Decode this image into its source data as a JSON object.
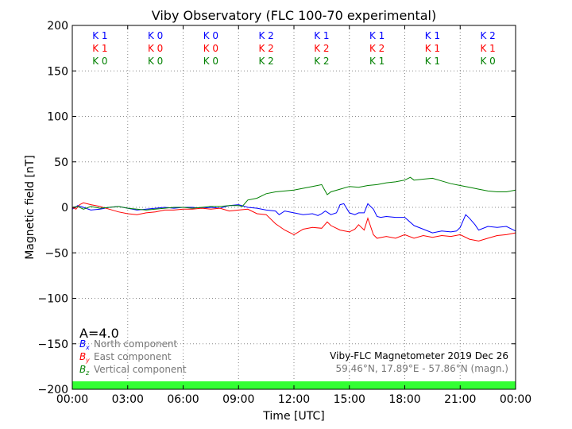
{
  "chart_data": {
    "type": "line",
    "title": "Viby Observatory (FLC 100-70 experimental)",
    "xlabel": "Time [UTC]",
    "ylabel": "Magnetic field [nT]",
    "xlim": [
      0,
      24
    ],
    "ylim": [
      -200,
      200
    ],
    "x_ticks": [
      "00:00",
      "03:00",
      "06:00",
      "09:00",
      "12:00",
      "15:00",
      "18:00",
      "21:00",
      "00:00"
    ],
    "y_ticks": [
      200,
      150,
      100,
      50,
      0,
      -50,
      -100,
      -150,
      -200
    ],
    "y_tick_labels": [
      "200",
      "150",
      "100",
      "50",
      "0",
      "−50",
      "−100",
      "−150",
      "−200"
    ],
    "grid": true,
    "k_index_rows": [
      {
        "color": "#0000ff",
        "values": [
          "K 1",
          "K 0",
          "K 0",
          "K 2",
          "K 1",
          "K 1",
          "K 1",
          "K 2"
        ]
      },
      {
        "color": "#ff0000",
        "values": [
          "K 1",
          "K 0",
          "K 0",
          "K 2",
          "K 2",
          "K 2",
          "K 1",
          "K 1"
        ]
      },
      {
        "color": "#008000",
        "values": [
          "K 0",
          "K 0",
          "K 0",
          "K 2",
          "K 2",
          "K 1",
          "K 1",
          "K 0"
        ]
      }
    ],
    "a_index": "A=4.0",
    "legend": [
      {
        "symbol": "B",
        "sub": "x",
        "label": "North component",
        "color": "#0000ff"
      },
      {
        "symbol": "B",
        "sub": "y",
        "label": "East component",
        "color": "#ff0000"
      },
      {
        "symbol": "B",
        "sub": "z",
        "label": "Vertical component",
        "color": "#008000"
      }
    ],
    "info_line1": "Viby-FLC Magnetometer 2019 Dec 26",
    "info_line2": "59.46°N, 17.89°E - 57.86°N (magn.)",
    "status_bar_color": "#33ff33",
    "series": [
      {
        "name": "North component",
        "color": "#0000ff",
        "x": [
          0,
          0.3,
          0.6,
          1,
          1.5,
          2,
          2.5,
          3,
          3.5,
          4,
          4.5,
          5,
          5.5,
          6,
          6.5,
          7,
          7.5,
          8,
          8.5,
          9,
          9.5,
          10,
          10.5,
          11,
          11.2,
          11.5,
          12,
          12.5,
          13,
          13.3,
          13.5,
          13.7,
          14,
          14.3,
          14.5,
          14.7,
          15,
          15.3,
          15.5,
          15.8,
          16,
          16.3,
          16.5,
          16.7,
          17,
          17.5,
          18,
          18.5,
          19,
          19.5,
          20,
          20.5,
          20.8,
          21,
          21.3,
          21.5,
          21.8,
          22,
          22.5,
          23,
          23.5,
          24
        ],
        "y": [
          -2,
          2,
          0,
          -3,
          -2,
          0,
          1,
          -1,
          -3,
          -2,
          -1,
          0,
          -1,
          0,
          0,
          -1,
          0,
          -1,
          2,
          3,
          0,
          -1,
          -3,
          -4,
          -8,
          -4,
          -6,
          -8,
          -7,
          -9,
          -7,
          -4,
          -8,
          -6,
          3,
          4,
          -6,
          -8,
          -6,
          -6,
          4,
          -2,
          -10,
          -11,
          -10,
          -11,
          -11,
          -20,
          -24,
          -28,
          -26,
          -27,
          -26,
          -22,
          -8,
          -12,
          -19,
          -25,
          -21,
          -22,
          -21,
          -26
        ]
      },
      {
        "name": "East component",
        "color": "#ff0000",
        "x": [
          0,
          0.2,
          0.4,
          0.6,
          1,
          1.5,
          2,
          2.5,
          3,
          3.5,
          4,
          4.5,
          5,
          5.5,
          6,
          6.5,
          7,
          7.5,
          8,
          8.5,
          9,
          9.5,
          10,
          10.5,
          11,
          11.5,
          11.8,
          12,
          12.5,
          13,
          13.5,
          13.8,
          14,
          14.5,
          15,
          15.3,
          15.5,
          15.8,
          16,
          16.3,
          16.5,
          17,
          17.5,
          18,
          18.5,
          19,
          19.5,
          20,
          20.5,
          21,
          21.5,
          22,
          22.5,
          23,
          23.5,
          24
        ],
        "y": [
          0,
          -2,
          3,
          5,
          3,
          1,
          -2,
          -5,
          -7,
          -8,
          -6,
          -5,
          -3,
          -3,
          -2,
          -2,
          -1,
          -2,
          -1,
          -4,
          -3,
          -2,
          -7,
          -8,
          -18,
          -25,
          -28,
          -30,
          -24,
          -22,
          -23,
          -16,
          -20,
          -25,
          -27,
          -24,
          -19,
          -25,
          -12,
          -30,
          -34,
          -32,
          -34,
          -30,
          -34,
          -31,
          -33,
          -31,
          -32,
          -30,
          -35,
          -37,
          -34,
          -31,
          -30,
          -28
        ]
      },
      {
        "name": "Vertical component",
        "color": "#008000",
        "x": [
          0,
          0.3,
          0.6,
          1,
          1.5,
          2,
          2.5,
          3,
          3.5,
          4,
          4.5,
          5,
          5.5,
          6,
          6.5,
          7,
          7.5,
          8,
          8.5,
          9,
          9.2,
          9.5,
          10,
          10.5,
          11,
          11.5,
          12,
          12.5,
          13,
          13.5,
          13.8,
          14,
          14.5,
          15,
          15.5,
          16,
          16.5,
          17,
          17.5,
          18,
          18.3,
          18.5,
          19,
          19.5,
          20,
          20.5,
          21,
          21.5,
          22,
          22.5,
          23,
          23.5,
          24
        ],
        "y": [
          0,
          1,
          -2,
          1,
          -1,
          0,
          1,
          -1,
          -2,
          -3,
          -2,
          -1,
          0,
          0,
          -1,
          0,
          1,
          1,
          2,
          2,
          1,
          8,
          10,
          15,
          17,
          18,
          19,
          21,
          23,
          25,
          14,
          17,
          20,
          23,
          22,
          24,
          25,
          27,
          28,
          30,
          33,
          30,
          31,
          32,
          29,
          26,
          24,
          22,
          20,
          18,
          17,
          17,
          19
        ]
      }
    ]
  }
}
